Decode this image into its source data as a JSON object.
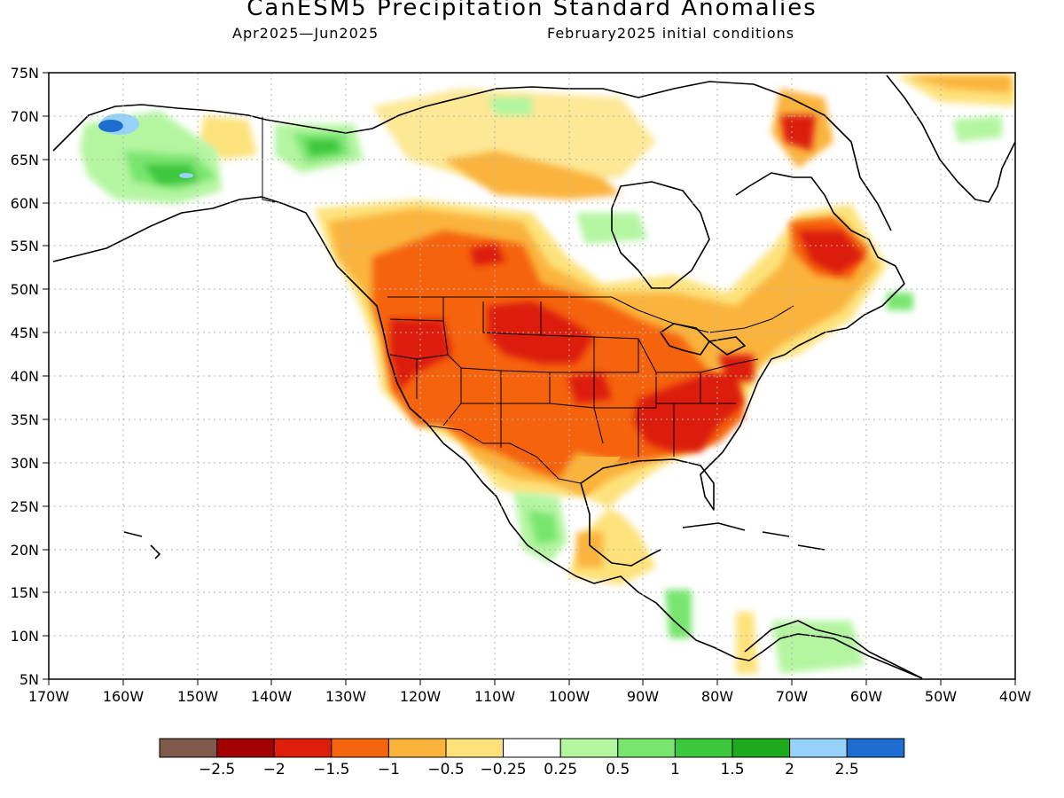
{
  "title": "CanESM5 Precipitation Standard Anomalies",
  "subtitle_left": "Apr2025—Jun2025",
  "subtitle_right": "February2025 initial conditions",
  "map": {
    "lon_range": [
      -170,
      -40
    ],
    "lat_range": [
      5,
      75
    ],
    "lat_ticks": [
      "75N",
      "70N",
      "65N",
      "60N",
      "55N",
      "50N",
      "45N",
      "40N",
      "35N",
      "30N",
      "25N",
      "20N",
      "15N",
      "10N",
      "5N"
    ],
    "lon_ticks": [
      "170W",
      "160W",
      "150W",
      "140W",
      "130W",
      "120W",
      "110W",
      "100W",
      "90W",
      "80W",
      "70W",
      "60W",
      "50W",
      "40W"
    ],
    "gridlines": true
  },
  "colorbar": {
    "colors": [
      "#7f5a4b",
      "#a50000",
      "#dc1e0a",
      "#f5640f",
      "#fab43c",
      "#fde27c",
      "#ffffff",
      "#b4f5a0",
      "#78e66e",
      "#3cc83c",
      "#1eaa1e",
      "#96d2fa",
      "#1e6ed2"
    ],
    "labels": [
      "−2.5",
      "−2",
      "−1.5",
      "−1",
      "−0.5",
      "−0.25",
      "0.25",
      "0.5",
      "1",
      "1.5",
      "2",
      "2.5"
    ]
  }
}
